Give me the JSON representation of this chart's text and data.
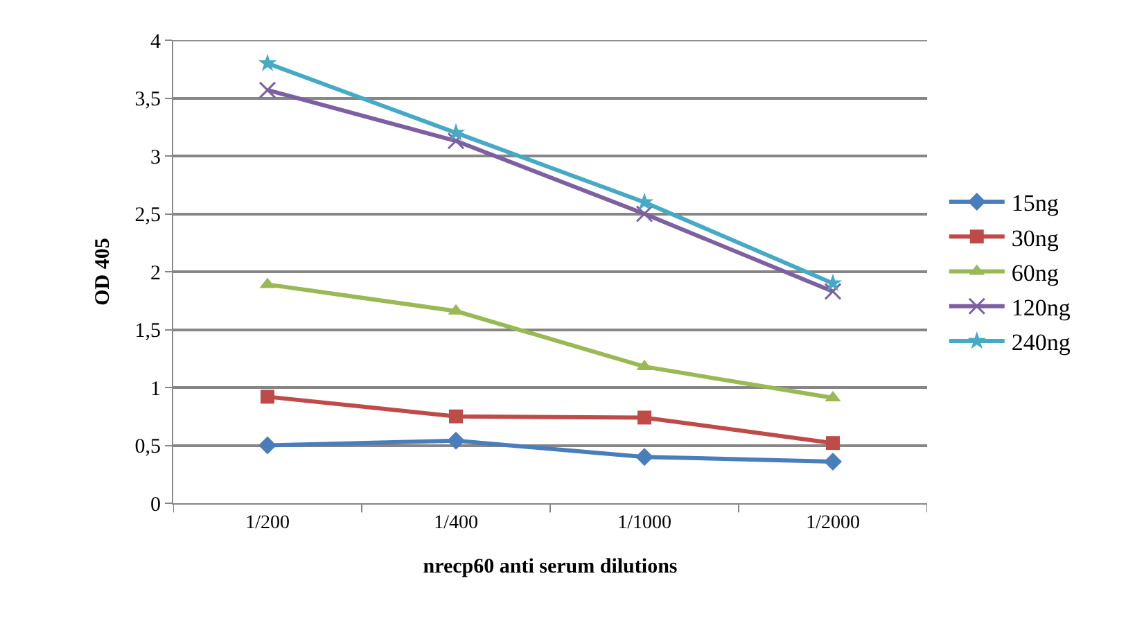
{
  "chart_data": {
    "type": "line",
    "xlabel": "nrecp60 anti serum dilutions",
    "ylabel": "OD 405",
    "categories": [
      "1/200",
      "1/400",
      "1/1000",
      "1/2000"
    ],
    "series": [
      {
        "name": "15ng",
        "color": "#4a7ebb",
        "marker": "diamond",
        "values": [
          0.5,
          0.54,
          0.4,
          0.36
        ]
      },
      {
        "name": "30ng",
        "color": "#be4b48",
        "marker": "square",
        "values": [
          0.92,
          0.75,
          0.74,
          0.52
        ]
      },
      {
        "name": "60ng",
        "color": "#98b954",
        "marker": "triangle",
        "values": [
          1.89,
          1.66,
          1.18,
          0.91
        ]
      },
      {
        "name": "120ng",
        "color": "#7d60a0",
        "marker": "cross",
        "values": [
          3.57,
          3.13,
          2.5,
          1.83
        ]
      },
      {
        "name": "240ng",
        "color": "#46aac5",
        "marker": "star",
        "values": [
          3.8,
          3.2,
          2.6,
          1.9
        ]
      }
    ],
    "ylim": [
      0,
      4
    ],
    "yticks": [
      0,
      {
        "value": 0.5,
        "label": "0,5"
      },
      1,
      {
        "value": 1.5,
        "label": "1,5"
      },
      2,
      {
        "value": 2.5,
        "label": "2,5"
      },
      3,
      {
        "value": 3.5,
        "label": "3,5"
      },
      4
    ],
    "grid": "y",
    "legend": "right",
    "line_style": "solid"
  }
}
